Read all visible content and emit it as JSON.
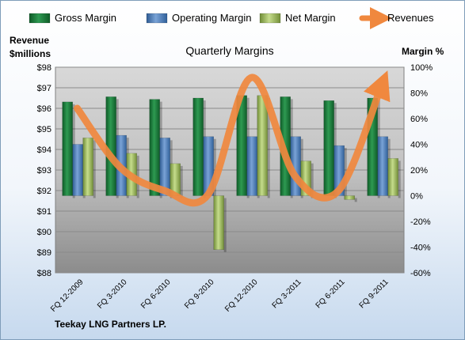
{
  "chart_data": {
    "type": "bar",
    "title": "Quarterly Margins",
    "company": "Teekay LNG Partners LP.",
    "left_axis_label_line1": "Revenue",
    "left_axis_label_line2": "$millions",
    "right_axis_label": "Margin %",
    "categories": [
      "FQ 12-2009",
      "FQ 3-2010",
      "FQ 6-2010",
      "FQ 9-2010",
      "FQ 12-2010",
      "FQ 3-2011",
      "FQ 6-2011",
      "FQ 9-2011"
    ],
    "left_ticks": [
      "$88",
      "$89",
      "$90",
      "$91",
      "$92",
      "$93",
      "$94",
      "$95",
      "$96",
      "$97",
      "$98"
    ],
    "right_ticks": [
      "-60%",
      "-40%",
      "-20%",
      "0%",
      "20%",
      "40%",
      "60%",
      "80%",
      "100%"
    ],
    "ylim_left": [
      88,
      98
    ],
    "ylim_right": [
      -60,
      100
    ],
    "grid": true,
    "legend_position": "top",
    "series": [
      {
        "name": "Gross Margin",
        "axis": "right",
        "color": "#1e7b3b",
        "values": [
          73,
          77,
          75,
          76,
          78,
          77,
          74,
          76
        ]
      },
      {
        "name": "Operating Margin",
        "axis": "right",
        "color": "#4f81bd",
        "values": [
          40,
          47,
          45,
          46,
          46,
          46,
          39,
          46
        ]
      },
      {
        "name": "Net Margin",
        "axis": "right",
        "color": "#9bbb59",
        "values": [
          45,
          33,
          25,
          -42,
          78,
          27,
          -3,
          29
        ]
      },
      {
        "name": "Revenues",
        "axis": "left",
        "type": "line",
        "color": "#f0883e",
        "values": [
          96.0,
          93.1,
          92.0,
          91.8,
          97.5,
          92.7,
          92.0,
          97.2
        ]
      }
    ]
  }
}
